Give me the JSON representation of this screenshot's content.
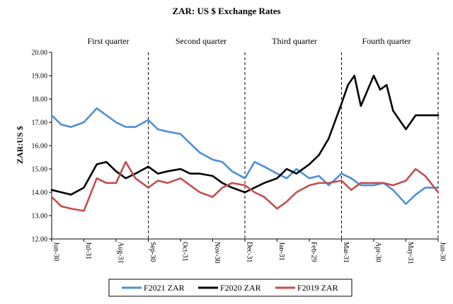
{
  "chart_data": {
    "type": "line",
    "title": "ZAR: US $ Exchange Rates",
    "xlabel": "",
    "ylabel": "ZAR:US $",
    "ylim": [
      12.0,
      20.0
    ],
    "yticks": [
      "12.00",
      "13.00",
      "14.00",
      "15.00",
      "16.00",
      "17.00",
      "18.00",
      "19.00",
      "20.00"
    ],
    "x_tick_labels": [
      "Jun-30",
      "Jul-31",
      "Aug-31",
      "Sep-30",
      "Oct-31",
      "Nov-30",
      "Dec-31",
      "Jan-31",
      "Feb-29",
      "Mar-31",
      "Apr-30",
      "May-31",
      "Jun-30"
    ],
    "quarter_labels": [
      "First quarter",
      "Second quarter",
      "Third quarter",
      "Fourth quarter"
    ],
    "quarter_boundaries_month_index": [
      3,
      6,
      9,
      12
    ],
    "series": [
      {
        "name": "F2021 ZAR",
        "color": "#4e8fd6",
        "x": [
          0,
          0.3,
          0.6,
          1,
          1.4,
          1.7,
          2,
          2.3,
          2.6,
          3,
          3.3,
          3.6,
          4,
          4.3,
          4.6,
          5,
          5.3,
          5.6,
          6,
          6.3,
          6.6,
          7,
          7.3,
          7.6,
          8,
          8.3,
          8.6,
          9,
          9.3,
          9.6,
          10,
          10.3,
          10.6,
          11,
          11.3,
          11.6,
          12
        ],
        "values": [
          17.3,
          16.9,
          16.8,
          17.0,
          17.6,
          17.3,
          17.0,
          16.8,
          16.8,
          17.1,
          16.7,
          16.6,
          16.5,
          16.1,
          15.7,
          15.4,
          15.3,
          14.9,
          14.6,
          15.3,
          15.1,
          14.8,
          14.6,
          15.0,
          14.6,
          14.7,
          14.3,
          14.8,
          14.6,
          14.3,
          14.3,
          14.4,
          14.1,
          13.5,
          13.9,
          14.2,
          14.2
        ]
      },
      {
        "name": "F2020 ZAR",
        "color": "#000000",
        "x": [
          0,
          0.3,
          0.6,
          1,
          1.4,
          1.7,
          2,
          2.3,
          2.6,
          3,
          3.3,
          3.6,
          4,
          4.3,
          4.6,
          5,
          5.3,
          5.6,
          6,
          6.3,
          6.6,
          7,
          7.3,
          7.6,
          8,
          8.3,
          8.6,
          9,
          9.2,
          9.4,
          9.6,
          10,
          10.2,
          10.4,
          10.6,
          11,
          11.3,
          11.6,
          12
        ],
        "values": [
          14.1,
          14.0,
          13.9,
          14.2,
          15.2,
          15.3,
          14.9,
          14.6,
          14.8,
          15.1,
          14.8,
          14.9,
          15.0,
          14.8,
          14.8,
          14.7,
          14.4,
          14.2,
          14.0,
          14.2,
          14.4,
          14.6,
          15.0,
          14.8,
          15.2,
          15.6,
          16.3,
          17.8,
          18.6,
          19.0,
          17.7,
          19.0,
          18.4,
          18.6,
          17.5,
          16.7,
          17.3,
          17.3,
          17.3
        ]
      },
      {
        "name": "F2019 ZAR",
        "color": "#c0504d",
        "x": [
          0,
          0.3,
          0.6,
          1,
          1.4,
          1.7,
          2,
          2.3,
          2.6,
          3,
          3.3,
          3.6,
          4,
          4.3,
          4.6,
          5,
          5.3,
          5.6,
          6,
          6.3,
          6.6,
          7,
          7.3,
          7.6,
          8,
          8.3,
          8.6,
          9,
          9.3,
          9.6,
          10,
          10.3,
          10.6,
          11,
          11.3,
          11.6,
          12
        ],
        "values": [
          13.8,
          13.4,
          13.3,
          13.2,
          14.6,
          14.4,
          14.4,
          15.3,
          14.6,
          14.2,
          14.5,
          14.4,
          14.6,
          14.3,
          14.0,
          13.8,
          14.2,
          14.4,
          14.3,
          14.0,
          13.8,
          13.3,
          13.6,
          14.0,
          14.3,
          14.4,
          14.4,
          14.5,
          14.1,
          14.4,
          14.4,
          14.4,
          14.3,
          14.5,
          15.0,
          14.7,
          14.0
        ]
      }
    ],
    "legend_position": "bottom-center",
    "grid": false
  }
}
